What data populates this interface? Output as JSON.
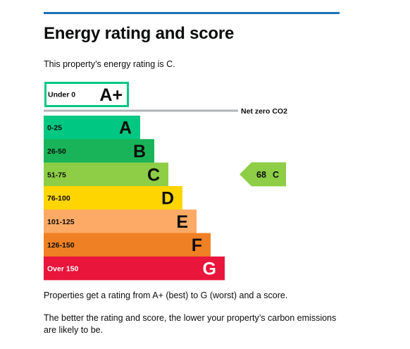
{
  "header": {
    "title": "Energy rating and score",
    "intro": "This property’s energy rating is C."
  },
  "chart_data": {
    "type": "bar",
    "title": "",
    "xlabel": "",
    "ylabel": "",
    "bands": [
      {
        "range": "Under 0",
        "letter": "A+",
        "fill": "#ffffff",
        "border": "#00c781",
        "label_color": "#0b0c0c",
        "outline": true
      },
      {
        "range": "0-25",
        "letter": "A",
        "fill": "#00c781",
        "label_color": "#0b0c0c"
      },
      {
        "range": "26-50",
        "letter": "B",
        "fill": "#19b459",
        "label_color": "#0b0c0c"
      },
      {
        "range": "51-75",
        "letter": "C",
        "fill": "#8dce46",
        "label_color": "#0b0c0c"
      },
      {
        "range": "76-100",
        "letter": "D",
        "fill": "#ffd500",
        "label_color": "#0b0c0c"
      },
      {
        "range": "101-125",
        "letter": "E",
        "fill": "#fcaa65",
        "label_color": "#0b0c0c"
      },
      {
        "range": "126-150",
        "letter": "F",
        "fill": "#ef8023",
        "label_color": "#0b0c0c"
      },
      {
        "range": "Over 150",
        "letter": "G",
        "fill": "#e9153b",
        "label_color": "#ffffff"
      }
    ],
    "net_zero_label": "Net zero CO2",
    "current": {
      "score": "68",
      "letter": "C",
      "color": "#8dce46",
      "band_index": 3
    }
  },
  "footer": {
    "line1": "Properties get a rating from A+ (best) to G (worst) and a score.",
    "line2": "The better the rating and score, the lower your property’s carbon emissions are likely to be."
  }
}
